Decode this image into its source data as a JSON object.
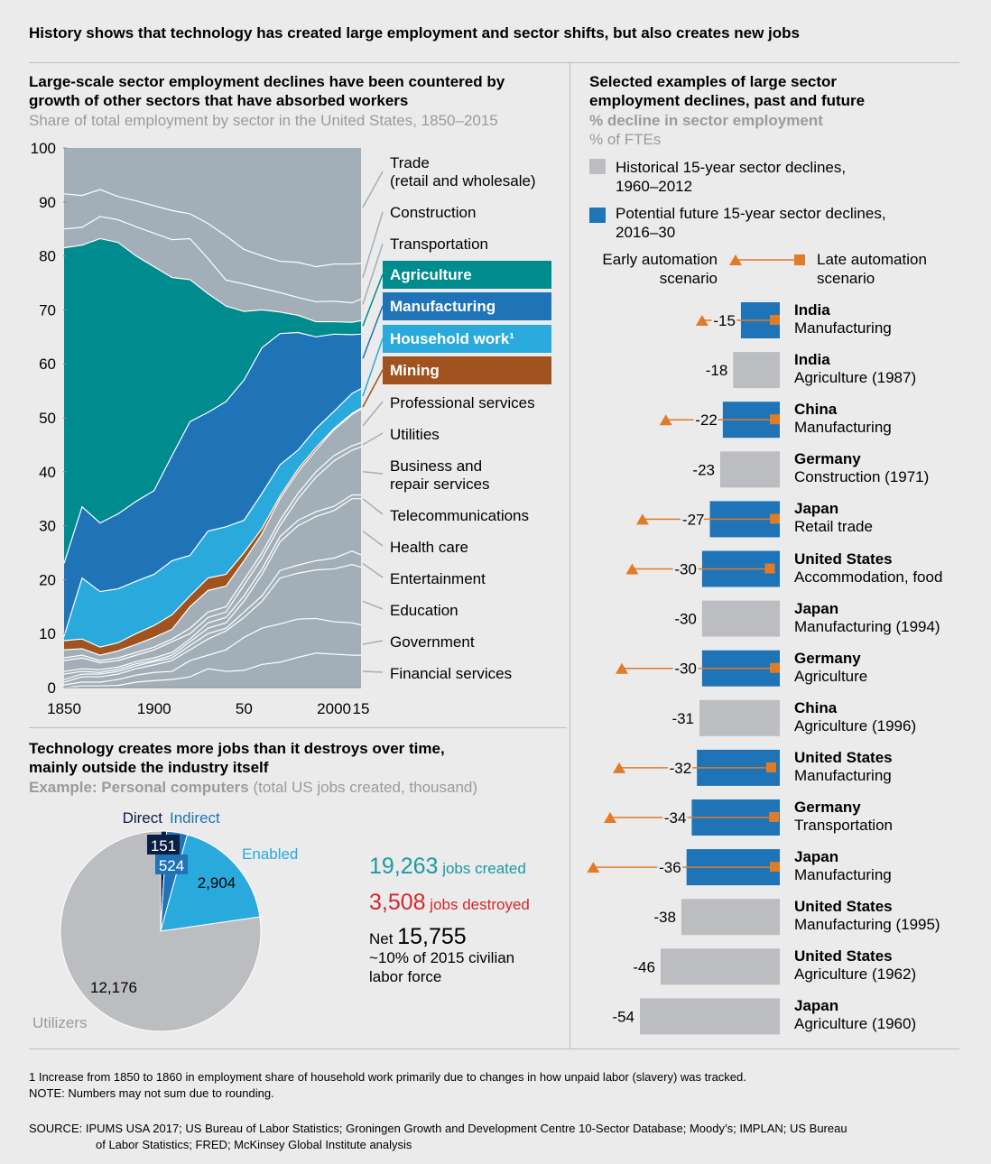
{
  "title": "History shows that technology has created large employment and sector shifts, but also creates new jobs",
  "left_top": {
    "title_line1": "Large-scale sector employment declines have been countered by",
    "title_line2": "growth of other sectors that have absorbed workers",
    "subtitle": "Share of total employment by sector in the United States, 1850–2015"
  },
  "legend": {
    "trade1": "Trade",
    "trade2": "(retail and wholesale)",
    "construction": "Construction",
    "transportation": "Transportation",
    "agriculture": "Agriculture",
    "manufacturing": "Manufacturing",
    "household": "Household work¹",
    "mining": "Mining",
    "professional": "Professional services",
    "utilities": "Utilities",
    "business1": "Business and",
    "business2": "repair services",
    "telecom": "Telecommunications",
    "health": "Health care",
    "entertainment": "Entertainment",
    "education": "Education",
    "government": "Government",
    "financial": "Financial services"
  },
  "colors": {
    "agriculture": "#008b8f",
    "manufacturing": "#1f73b7",
    "household": "#2aaadc",
    "mining": "#a0521f",
    "other": "#a2afb8",
    "orange": "#e07b28",
    "bar_hist": "#bcbdc0",
    "bar_future": "#1f73b7"
  },
  "chart_data": [
    {
      "type": "area",
      "title": "Share of total employment by sector in the United States, 1850–2015",
      "ylim": [
        0,
        100
      ],
      "yticks": [
        "0",
        "10",
        "20",
        "30",
        "40",
        "50",
        "60",
        "70",
        "80",
        "90",
        "100"
      ],
      "xticks": [
        {
          "year": 1850,
          "label": "1850"
        },
        {
          "year": 1900,
          "label": "1900"
        },
        {
          "year": 1950,
          "label": "50"
        },
        {
          "year": 2000,
          "label": "2000"
        },
        {
          "year": 2015,
          "label": "15"
        }
      ],
      "x": [
        1850,
        1860,
        1870,
        1880,
        1890,
        1900,
        1910,
        1920,
        1930,
        1940,
        1950,
        1960,
        1970,
        1980,
        1990,
        2000,
        2010,
        2015
      ],
      "boundaries": {
        "h": [
          0,
          0.3,
          0.3,
          0.4,
          1,
          1.3,
          1.5,
          2,
          3.5,
          3,
          3.2,
          4.3,
          4.7,
          5.6,
          6.4,
          6.2,
          6,
          6
        ],
        "g": [
          0.5,
          1,
          1,
          1.5,
          2.3,
          2.8,
          3,
          5,
          6,
          7,
          9.3,
          11,
          11.8,
          12.7,
          12.8,
          12.2,
          12,
          11.6
        ],
        "f": [
          1,
          2,
          2,
          2.5,
          3.5,
          4.2,
          5,
          7,
          9,
          10.5,
          13,
          16,
          20.3,
          21.2,
          21.8,
          22,
          22.8,
          22.3
        ],
        "e": [
          1.5,
          2.5,
          2.5,
          3,
          4,
          4.8,
          5.5,
          7.8,
          10,
          11,
          14,
          17,
          21.7,
          22.7,
          23.5,
          24,
          25.3,
          24.6
        ],
        "d": [
          2.5,
          3,
          2.8,
          3.4,
          4.4,
          5,
          6,
          8.5,
          11,
          12,
          16,
          21,
          27,
          30,
          31.7,
          32.8,
          35,
          35
        ],
        "c": [
          3,
          3.5,
          3.3,
          3.8,
          4.8,
          5.5,
          6.5,
          9,
          12,
          13,
          17,
          22,
          28,
          31,
          32.6,
          33.6,
          35.7,
          35.7
        ],
        "b": [
          5,
          5.5,
          4.6,
          5,
          6,
          7,
          8.5,
          10,
          13,
          14,
          19,
          24,
          30,
          35,
          39,
          42,
          44,
          44.6
        ],
        "a": [
          5.5,
          6,
          5,
          5.5,
          6.5,
          7.5,
          9,
          11,
          14,
          15,
          20,
          25,
          31,
          36,
          40,
          43,
          44.8,
          45.4
        ],
        "mining_bottom": [
          7,
          7.2,
          6,
          6.8,
          8,
          9.3,
          10.8,
          15,
          18,
          18.8,
          23.5,
          28.5,
          35,
          40,
          44,
          47.8,
          50.6,
          51.6
        ],
        "mining_top": [
          8.7,
          9,
          7.5,
          8.3,
          10,
          11.5,
          13.5,
          17,
          20.3,
          21,
          25,
          29.5,
          35.5,
          40.5,
          44.5,
          48,
          50.8,
          51.8
        ],
        "household_top": [
          9.5,
          20.3,
          17.8,
          18.3,
          19.7,
          21,
          23.5,
          24.5,
          29,
          29.8,
          31,
          36,
          41.3,
          44,
          48,
          51.2,
          54.5,
          55.4
        ],
        "manufacturing_top": [
          23,
          33.5,
          30.5,
          32.2,
          34.5,
          36.5,
          43,
          49.3,
          51,
          53,
          57,
          63,
          65.6,
          65.8,
          65,
          65.5,
          65.4,
          65.5
        ],
        "agriculture_top": [
          81.5,
          82,
          83.2,
          82.5,
          80,
          78,
          76,
          75.6,
          73,
          70.7,
          69.7,
          70,
          69.6,
          69,
          67.8,
          67.8,
          67.7,
          68
        ],
        "transportation_top": [
          85,
          85.3,
          87.3,
          86.7,
          85.4,
          84.2,
          83,
          83.2,
          79.5,
          75.5,
          74.8,
          74,
          73.2,
          72.3,
          71.5,
          71.6,
          71.3,
          72
        ],
        "construction_top": [
          91.5,
          91.2,
          92.3,
          91,
          90.2,
          89.3,
          88.4,
          87.8,
          86,
          83.7,
          81.2,
          80,
          79,
          78.8,
          78,
          78.5,
          78.5,
          78.6
        ]
      }
    },
    {
      "type": "pie",
      "title": "Example: Personal computers (total US jobs created, thousand)",
      "slices": [
        {
          "name": "Direct",
          "value": 151,
          "label": "151",
          "color": "#0b1f45"
        },
        {
          "name": "Indirect",
          "value": 524,
          "label": "524",
          "color": "#1f73b7"
        },
        {
          "name": "Enabled",
          "value": 2904,
          "label": "2,904",
          "color": "#2aaadc"
        },
        {
          "name": "Utilizers",
          "value": 12176,
          "label": "12,176",
          "color": "#bcbdc0"
        }
      ]
    },
    {
      "type": "bar",
      "title": "Selected examples of large sector employment declines, past and future",
      "unit": "% decline in sector employment",
      "rows": [
        {
          "country": "India",
          "sector": "Manufacturing",
          "value": -15,
          "kind": "future",
          "early": -30,
          "late": -0.3
        },
        {
          "country": "India",
          "sector": "Agriculture (1987)",
          "value": -18,
          "kind": "historical"
        },
        {
          "country": "China",
          "sector": "Manufacturing",
          "value": -22,
          "kind": "future",
          "early": -44,
          "late": 0
        },
        {
          "country": "Germany",
          "sector": "Construction (1971)",
          "value": -23,
          "kind": "historical"
        },
        {
          "country": "Japan",
          "sector": "Retail trade",
          "value": -27,
          "kind": "future",
          "early": -53,
          "late": -1
        },
        {
          "country": "United States",
          "sector": "Accommodation, food",
          "value": -30,
          "kind": "future",
          "early": -57,
          "late": -4
        },
        {
          "country": "Japan",
          "sector": "Manufacturing (1994)",
          "value": -30,
          "kind": "historical"
        },
        {
          "country": "Germany",
          "sector": "Agriculture",
          "value": -30,
          "kind": "future",
          "early": -61,
          "late": -1.7
        },
        {
          "country": "China",
          "sector": "Agriculture (1996)",
          "value": -31,
          "kind": "historical"
        },
        {
          "country": "United States",
          "sector": "Manufacturing",
          "value": -32,
          "kind": "future",
          "early": -62,
          "late": -3.5
        },
        {
          "country": "Germany",
          "sector": "Transportation",
          "value": -34,
          "kind": "future",
          "early": -65.5,
          "late": -2.4
        },
        {
          "country": "Japan",
          "sector": "Manufacturing",
          "value": -36,
          "kind": "future",
          "early": -72,
          "late": -1.4
        },
        {
          "country": "United States",
          "sector": "Manufacturing (1995)",
          "value": -38,
          "kind": "historical"
        },
        {
          "country": "United States",
          "sector": "Agriculture (1962)",
          "value": -46,
          "kind": "historical"
        },
        {
          "country": "Japan",
          "sector": "Agriculture (1960)",
          "value": -54,
          "kind": "historical"
        }
      ]
    }
  ],
  "left_bottom": {
    "title_line1": "Technology creates more jobs than it destroys over time,",
    "title_line2": "mainly outside the industry itself",
    "subtitle_bold": "Example: Personal computers",
    "subtitle_rest": " (total US jobs created, thousand)",
    "label_direct": "Direct",
    "label_indirect": "Indirect",
    "label_enabled": "Enabled",
    "label_utilizers": "Utilizers",
    "created_num": "19,263",
    "created_text": " jobs created",
    "destroyed_num": "3,508",
    "destroyed_text": " jobs destroyed",
    "net_label": "Net ",
    "net_num": "15,755",
    "net_line2": "~10% of 2015 civilian",
    "net_line3": "labor force"
  },
  "right": {
    "title_line1": "Selected examples of large sector",
    "title_line2": "employment declines, past and future",
    "subtitle1": "% decline in sector employment",
    "subtitle2": "% of FTEs",
    "legend_hist1": "Historical 15-year sector declines,",
    "legend_hist2": "1960–2012",
    "legend_fut1": "Potential future 15-year sector declines,",
    "legend_fut2": "2016–30",
    "early1": "Early automation",
    "early2": "scenario",
    "late1": "Late automation",
    "late2": "scenario"
  },
  "footnotes": {
    "f1": "1  Increase from 1850 to 1860 in employment share of household work primarily due to changes in how unpaid labor (slavery) was tracked.",
    "note": "NOTE: Numbers may not sum due to rounding.",
    "source1": "SOURCE:  IPUMS USA 2017; US Bureau of Labor Statistics; Groningen Growth and Development Centre 10-Sector Database; Moody’s; IMPLAN; US Bureau",
    "source2": "of Labor Statistics; FRED; McKinsey Global Institute analysis"
  }
}
